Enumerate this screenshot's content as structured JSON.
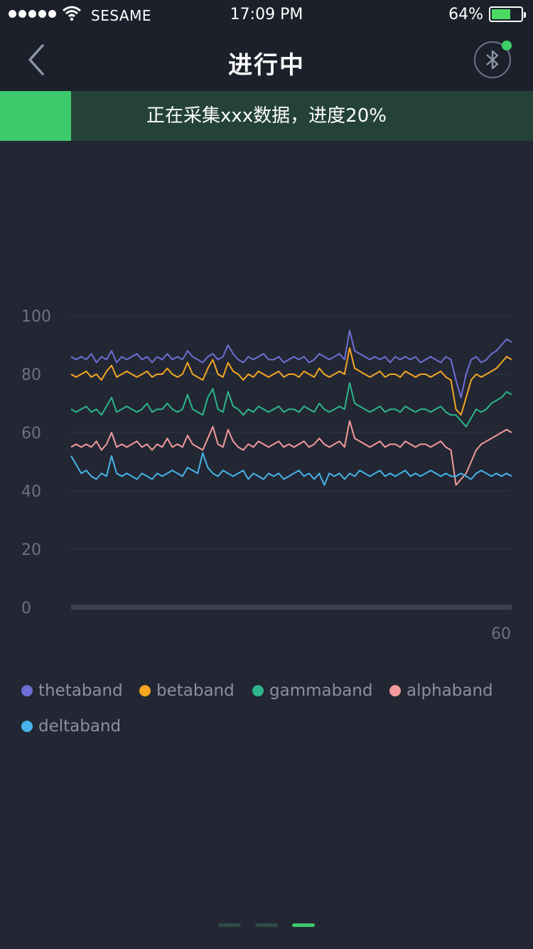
{
  "status_bar": {
    "carrier": "SESAME",
    "time": "17:09 PM",
    "battery_percent": "64%",
    "battery_level": 0.64,
    "signal_icon": "signal-dots-icon",
    "wifi_icon": "wifi-icon"
  },
  "nav": {
    "title": "进行中",
    "back_icon": "chevron-left-icon",
    "bluetooth_icon": "bluetooth-icon",
    "bluetooth_connected": true
  },
  "progress": {
    "text": "正在采集xxx数据，进度20%",
    "value": 0.2
  },
  "colors": {
    "accent_green": "#3ec96d",
    "background": "#222733",
    "header_bg": "#1b202a"
  },
  "chart_data": {
    "type": "line",
    "y_ticks": [
      "100",
      "80",
      "60",
      "40",
      "20",
      "0"
    ],
    "x_tick_label": "60",
    "ylim": [
      0,
      100
    ],
    "xlim": [
      0,
      60
    ],
    "grid": true,
    "legend_position": "bottom",
    "series": [
      {
        "name": "thetaband",
        "color": "#6d6fd4",
        "base": 86,
        "values": [
          86,
          85,
          86,
          85,
          87,
          84,
          86,
          85,
          88,
          84,
          86,
          85,
          86,
          87,
          85,
          86,
          84,
          86,
          85,
          87,
          85,
          86,
          85,
          88,
          86,
          85,
          84,
          86,
          87,
          85,
          86,
          90,
          87,
          85,
          84,
          86,
          85,
          86,
          87,
          85,
          85,
          86,
          84,
          85,
          86,
          85,
          86,
          84,
          85,
          87,
          86,
          85,
          86,
          87,
          85,
          95,
          88,
          87,
          86,
          85,
          86,
          85,
          86,
          84,
          86,
          85,
          86,
          85,
          86,
          84,
          85,
          86,
          85,
          84,
          86,
          85,
          78,
          72,
          80,
          85,
          86,
          84,
          85,
          87,
          88,
          90,
          92,
          91
        ]
      },
      {
        "name": "betaband",
        "color": "#f5a623",
        "base": 80,
        "values": [
          80,
          79,
          80,
          81,
          79,
          80,
          78,
          81,
          83,
          79,
          80,
          81,
          80,
          79,
          80,
          81,
          79,
          80,
          80,
          82,
          80,
          79,
          80,
          84,
          80,
          79,
          78,
          82,
          85,
          80,
          79,
          84,
          81,
          80,
          78,
          80,
          79,
          81,
          80,
          79,
          80,
          81,
          79,
          80,
          80,
          79,
          81,
          80,
          79,
          82,
          80,
          79,
          80,
          81,
          80,
          89,
          82,
          81,
          80,
          79,
          80,
          81,
          79,
          80,
          80,
          79,
          81,
          80,
          79,
          80,
          80,
          79,
          80,
          81,
          79,
          78,
          68,
          66,
          72,
          78,
          80,
          79,
          80,
          81,
          82,
          84,
          86,
          85
        ]
      },
      {
        "name": "gammaband",
        "color": "#2fb58e",
        "base": 68,
        "values": [
          68,
          67,
          68,
          69,
          67,
          68,
          66,
          69,
          72,
          67,
          68,
          69,
          68,
          67,
          68,
          70,
          67,
          68,
          68,
          70,
          68,
          67,
          68,
          73,
          68,
          67,
          66,
          72,
          75,
          68,
          67,
          74,
          69,
          68,
          66,
          68,
          67,
          69,
          68,
          67,
          68,
          69,
          67,
          68,
          68,
          67,
          69,
          68,
          67,
          70,
          68,
          67,
          68,
          69,
          68,
          77,
          70,
          69,
          68,
          67,
          68,
          69,
          67,
          68,
          68,
          67,
          69,
          68,
          67,
          68,
          68,
          67,
          68,
          69,
          67,
          66,
          66,
          64,
          62,
          65,
          68,
          67,
          68,
          70,
          71,
          72,
          74,
          73
        ]
      },
      {
        "name": "alphaband",
        "color": "#f39a9c",
        "base": 55,
        "values": [
          55,
          56,
          55,
          56,
          55,
          57,
          54,
          56,
          60,
          55,
          56,
          55,
          56,
          57,
          55,
          56,
          54,
          56,
          55,
          58,
          55,
          56,
          55,
          59,
          56,
          55,
          54,
          58,
          62,
          56,
          55,
          61,
          57,
          55,
          54,
          56,
          55,
          57,
          56,
          55,
          56,
          57,
          55,
          56,
          55,
          56,
          57,
          55,
          56,
          58,
          56,
          55,
          56,
          57,
          55,
          64,
          58,
          57,
          56,
          55,
          56,
          57,
          55,
          56,
          56,
          55,
          57,
          56,
          55,
          56,
          56,
          55,
          56,
          57,
          55,
          54,
          42,
          44,
          46,
          50,
          54,
          56,
          57,
          58,
          59,
          60,
          61,
          60
        ]
      },
      {
        "name": "deltaband",
        "color": "#47b4e8",
        "base": 46,
        "values": [
          52,
          49,
          46,
          47,
          45,
          44,
          46,
          45,
          52,
          46,
          45,
          46,
          45,
          44,
          46,
          45,
          44,
          46,
          45,
          46,
          47,
          46,
          45,
          48,
          47,
          46,
          53,
          48,
          46,
          45,
          47,
          46,
          45,
          46,
          47,
          44,
          46,
          45,
          44,
          46,
          45,
          46,
          44,
          45,
          46,
          47,
          45,
          46,
          44,
          46,
          42,
          46,
          45,
          46,
          44,
          46,
          45,
          47,
          46,
          45,
          46,
          47,
          45,
          46,
          45,
          46,
          47,
          45,
          46,
          45,
          46,
          47,
          46,
          45,
          46,
          45,
          45,
          46,
          45,
          44,
          46,
          47,
          46,
          45,
          46,
          45,
          46,
          45
        ]
      }
    ]
  },
  "pager": {
    "count": 3,
    "active_index": 2
  }
}
